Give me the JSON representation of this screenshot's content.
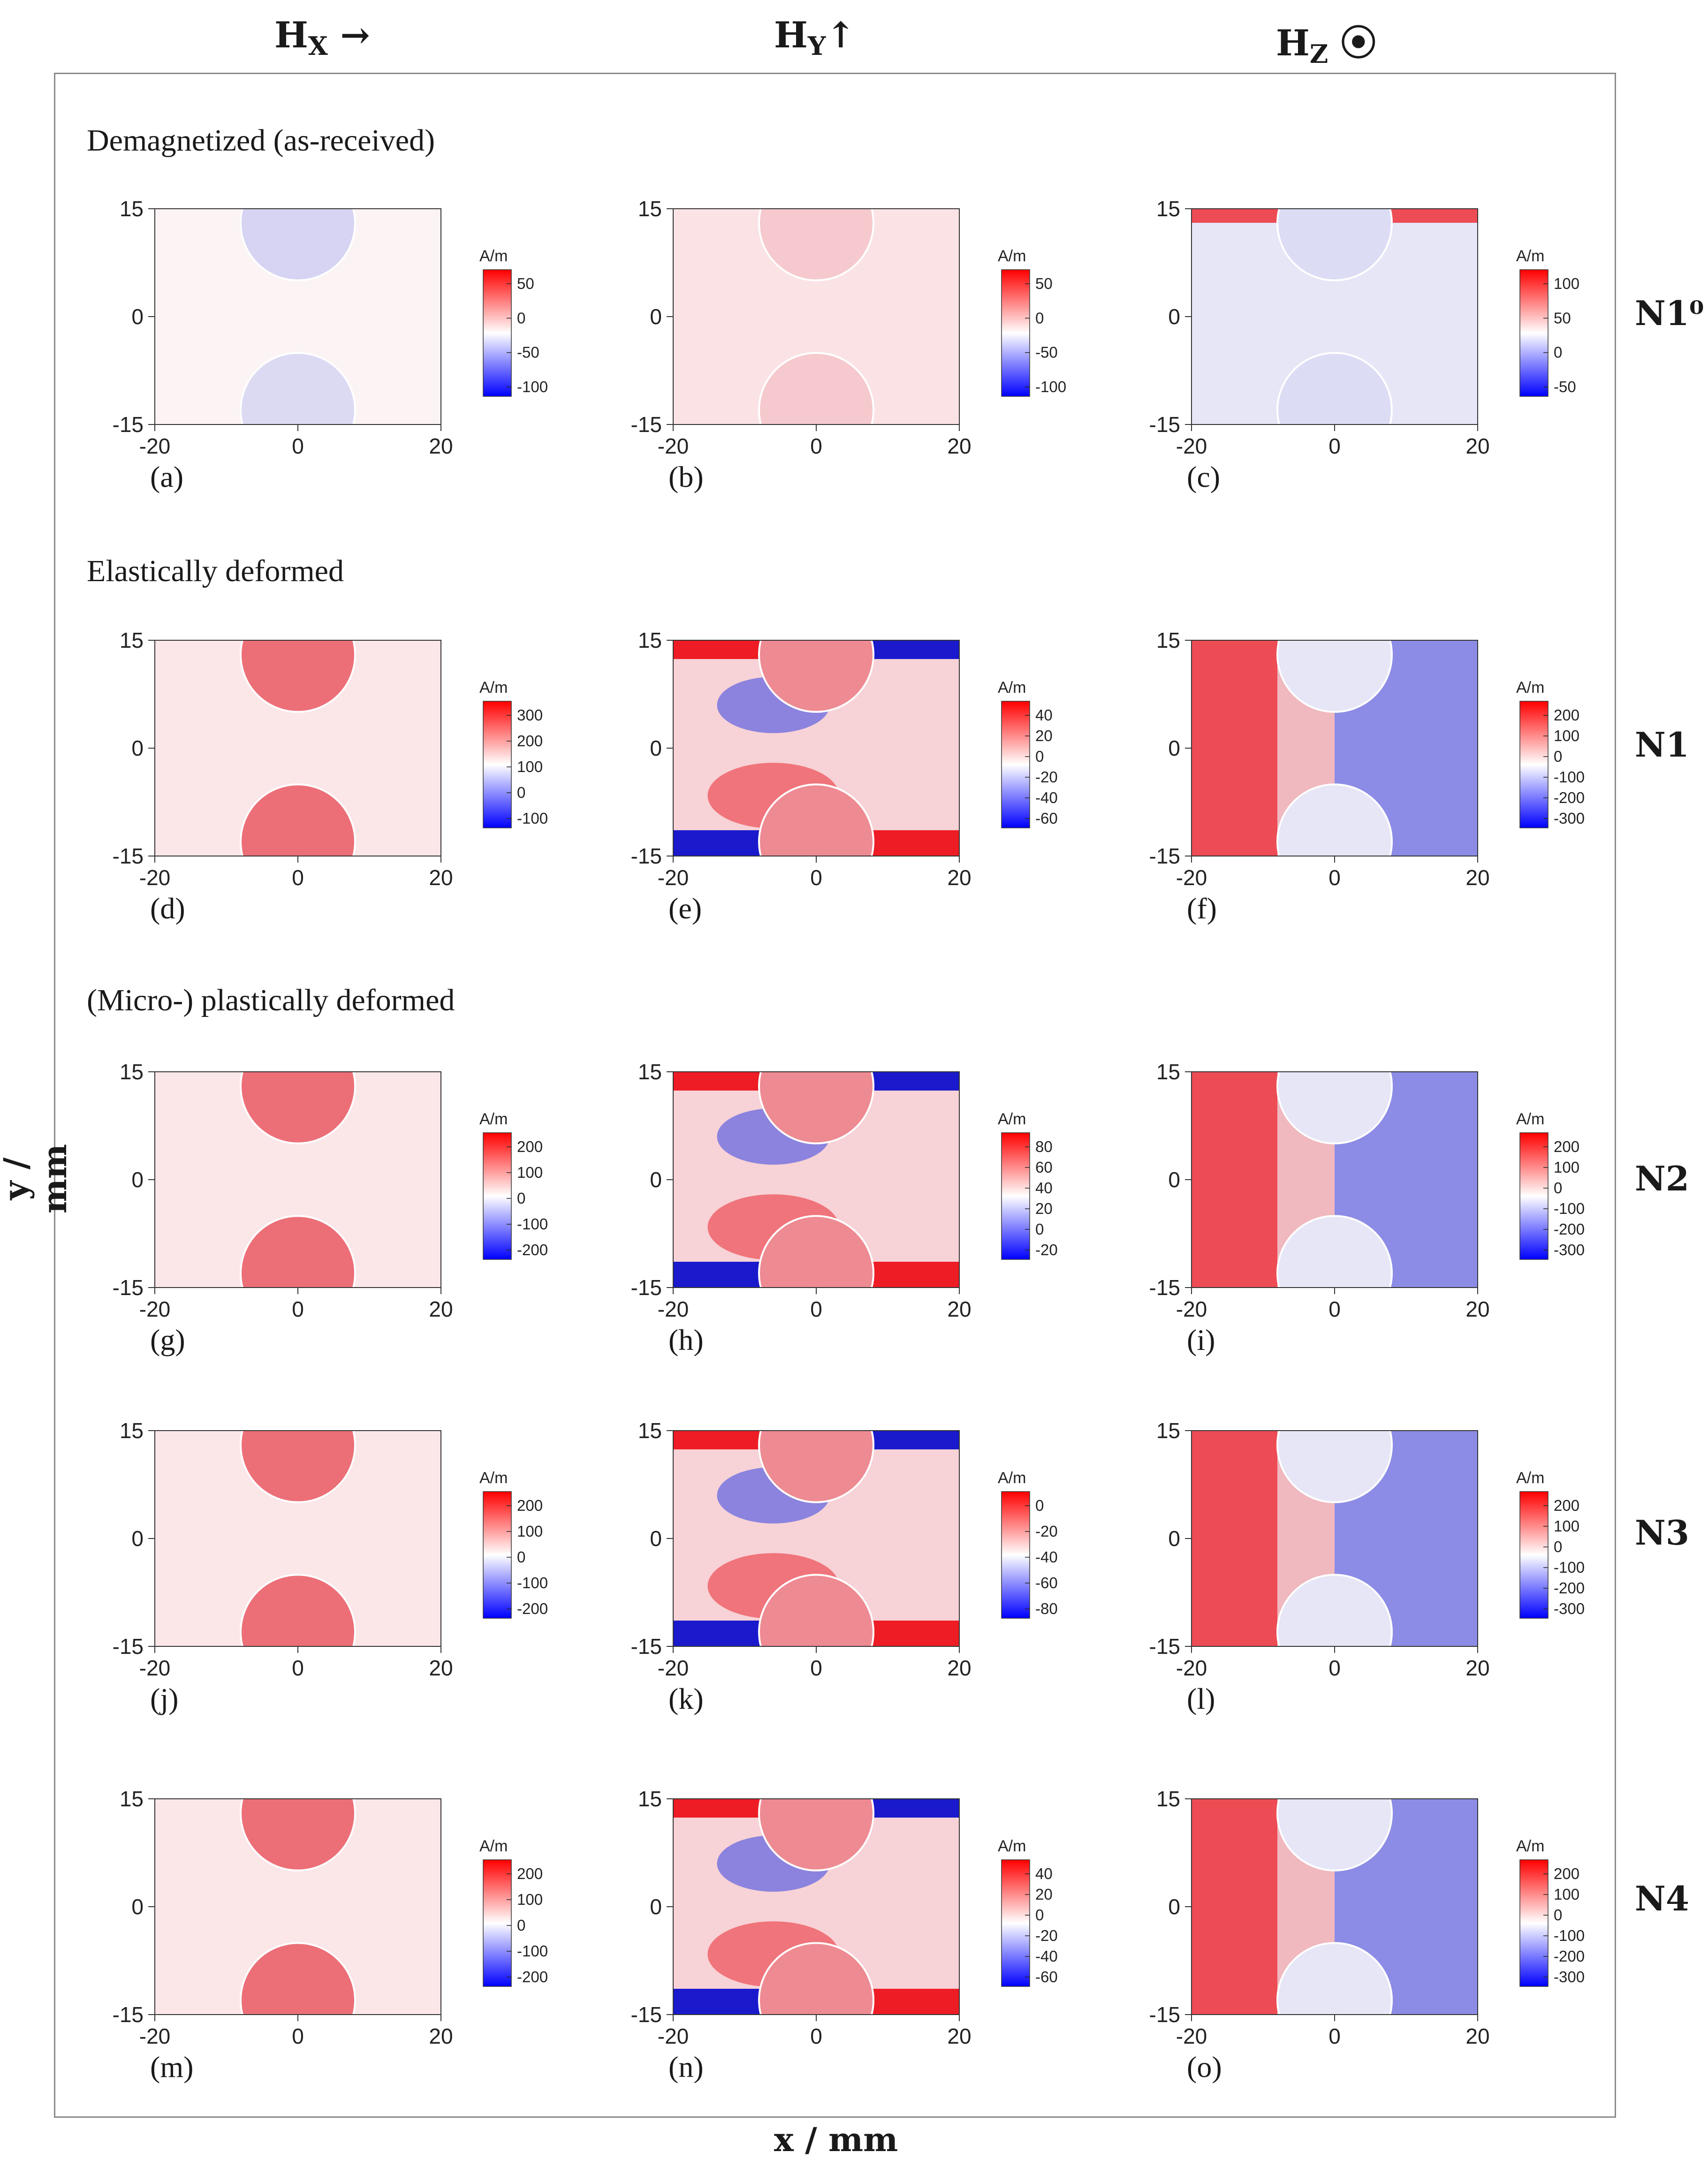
{
  "column_headers": {
    "hx": "H",
    "hx_sub": "X",
    "hx_sym": "→",
    "hy": "H",
    "hy_sub": "Y",
    "hy_sym": "↑",
    "hz": "H",
    "hz_sub": "Z",
    "hz_sym": "⦿"
  },
  "sections": {
    "demag": "Demagnetized (as-received)",
    "elastic": "Elastically deformed",
    "plastic": "(Micro-) plastically deformed"
  },
  "samples": [
    "N1⁰",
    "N1",
    "N2",
    "N3",
    "N4"
  ],
  "axis_labels": {
    "x": "x / mm",
    "y": "y / mm"
  },
  "chart_data": {
    "type": "heatmap",
    "colormap": {
      "low": "#0000ff",
      "mid": "#ffffff",
      "high": "#ff0000"
    },
    "x_ticks": [
      "-20",
      "0",
      "20"
    ],
    "y_ticks": [
      "15",
      "0",
      "-15"
    ],
    "xlim": [
      -20,
      20
    ],
    "ylim": [
      -15,
      15
    ],
    "unit": "A/m",
    "panels": [
      {
        "label": "(a)",
        "component": "Hx",
        "sample": "N1⁰",
        "cbar_ticks": [
          "50",
          "0",
          "-50",
          "-100"
        ]
      },
      {
        "label": "(b)",
        "component": "Hy",
        "sample": "N1⁰",
        "cbar_ticks": [
          "50",
          "0",
          "-50",
          "-100"
        ]
      },
      {
        "label": "(c)",
        "component": "Hz",
        "sample": "N1⁰",
        "cbar_ticks": [
          "100",
          "50",
          "0",
          "-50"
        ]
      },
      {
        "label": "(d)",
        "component": "Hx",
        "sample": "N1",
        "cbar_ticks": [
          "300",
          "200",
          "100",
          "0",
          "-100"
        ]
      },
      {
        "label": "(e)",
        "component": "Hy",
        "sample": "N1",
        "cbar_ticks": [
          "40",
          "20",
          "0",
          "-20",
          "-40",
          "-60"
        ]
      },
      {
        "label": "(f)",
        "component": "Hz",
        "sample": "N1",
        "cbar_ticks": [
          "200",
          "100",
          "0",
          "-100",
          "-200",
          "-300"
        ]
      },
      {
        "label": "(g)",
        "component": "Hx",
        "sample": "N2",
        "cbar_ticks": [
          "200",
          "100",
          "0",
          "-100",
          "-200"
        ]
      },
      {
        "label": "(h)",
        "component": "Hy",
        "sample": "N2",
        "cbar_ticks": [
          "80",
          "60",
          "40",
          "20",
          "0",
          "-20"
        ]
      },
      {
        "label": "(i)",
        "component": "Hz",
        "sample": "N2",
        "cbar_ticks": [
          "200",
          "100",
          "0",
          "-100",
          "-200",
          "-300"
        ]
      },
      {
        "label": "(j)",
        "component": "Hx",
        "sample": "N3",
        "cbar_ticks": [
          "200",
          "100",
          "0",
          "-100",
          "-200"
        ]
      },
      {
        "label": "(k)",
        "component": "Hy",
        "sample": "N3",
        "cbar_ticks": [
          "0",
          "-20",
          "-40",
          "-60",
          "-80"
        ]
      },
      {
        "label": "(l)",
        "component": "Hz",
        "sample": "N3",
        "cbar_ticks": [
          "200",
          "100",
          "0",
          "-100",
          "-200",
          "-300"
        ]
      },
      {
        "label": "(m)",
        "component": "Hx",
        "sample": "N4",
        "cbar_ticks": [
          "200",
          "100",
          "0",
          "-100",
          "-200"
        ]
      },
      {
        "label": "(n)",
        "component": "Hy",
        "sample": "N4",
        "cbar_ticks": [
          "40",
          "20",
          "0",
          "-20",
          "-40",
          "-60"
        ]
      },
      {
        "label": "(o)",
        "component": "Hz",
        "sample": "N4",
        "cbar_ticks": [
          "200",
          "100",
          "0",
          "-100",
          "-200",
          "-300"
        ]
      }
    ]
  }
}
